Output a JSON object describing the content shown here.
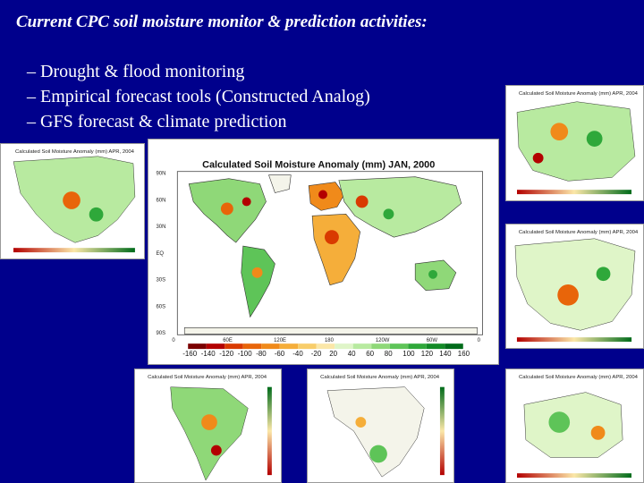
{
  "slide": {
    "title": "Current CPC soil moisture monitor & prediction activities:",
    "bullets": [
      "– Drought & flood monitoring",
      "– Empirical forecast tools (Constructed Analog)",
      "– GFS forecast & climate prediction"
    ]
  },
  "main_map": {
    "title": "Calculated Soil Moisture Anomaly (mm) JAN, 2000",
    "lat_labels": [
      "90N",
      "60N",
      "30N",
      "EQ",
      "30S",
      "60S",
      "90S"
    ],
    "lon_labels": [
      "0",
      "60E",
      "120E",
      "180",
      "120W",
      "60W",
      "0"
    ],
    "colorbar_labels": [
      "-160",
      "-140",
      "-120",
      "-100",
      "-80",
      "-60",
      "-40",
      "-20",
      "20",
      "40",
      "60",
      "80",
      "100",
      "120",
      "140",
      "160"
    ],
    "colorbar_colors": [
      "#7a0000",
      "#b30000",
      "#d93a00",
      "#e8650a",
      "#f08a1a",
      "#f5ae3a",
      "#f8cd6a",
      "#fbe7a8",
      "#dff5c8",
      "#b8eaa0",
      "#8fd878",
      "#5ec458",
      "#2fa83a",
      "#128a26",
      "#006b1a"
    ]
  },
  "small_maps": {
    "north_america": {
      "title": "Calculated Soil Moisture Anomaly (mm) APR, 2004"
    },
    "europe": {
      "title": "Calculated Soil Moisture Anomaly (mm) APR, 2004"
    },
    "asia": {
      "title": "Calculated Soil Moisture Anomaly (mm) APR, 2004"
    },
    "south_america": {
      "title": "Calculated Soil Moisture Anomaly (mm) APR, 2004"
    },
    "africa": {
      "title": "Calculated Soil Moisture Anomaly (mm) APR, 2004"
    },
    "australia": {
      "title": "Calculated Soil Moisture Anomaly (mm) APR, 2004"
    }
  },
  "palette": {
    "background": "#00008c",
    "text": "#ffffff",
    "wet": "#3fae48",
    "dry": "#e07a1a",
    "very_dry": "#b32000",
    "neutral_land": "#f4f4ea"
  }
}
